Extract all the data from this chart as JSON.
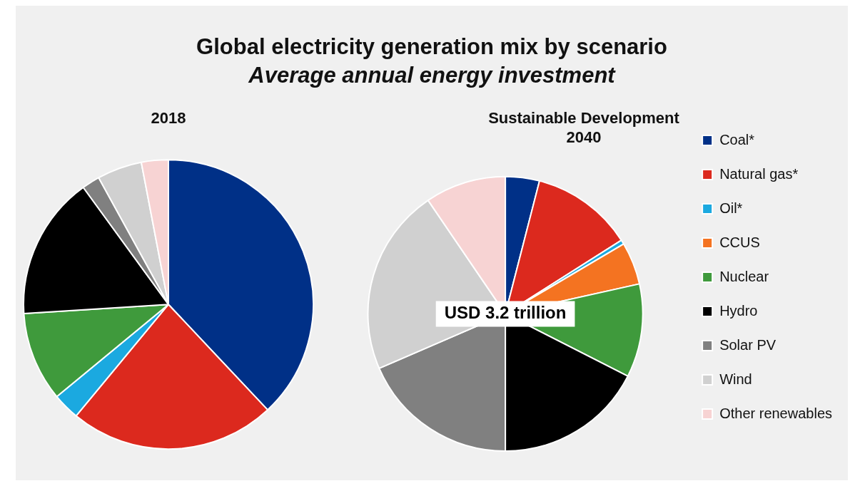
{
  "chart_data": [
    {
      "type": "other",
      "title": "Global electricity generation mix by scenario",
      "subtitle": "Average annual energy investment"
    },
    {
      "type": "pie",
      "title": "2018",
      "categories": [
        null,
        null,
        null,
        null,
        null,
        null,
        null,
        null,
        null
      ],
      "values": [
        38,
        23,
        3,
        0,
        10,
        16,
        2,
        5,
        3
      ],
      "colors": [
        "#003087",
        "#dc291e",
        "#1ba9e0",
        "#f47321",
        "#3f9a3c",
        "#000000",
        "#808080",
        "#d0d0d0",
        "#f7d3d3"
      ],
      "legend": false
    },
    {
      "type": "pie",
      "title": "Sustainable Development\n2040",
      "categories": [
        "Coal*",
        "Natural gas*",
        "Oil*",
        "CCUS",
        "Nuclear",
        "Hydro",
        "Solar PV",
        "Wind",
        "Other renewables"
      ],
      "values": [
        4,
        12,
        0.5,
        5,
        11,
        17.5,
        18.5,
        22,
        9.5
      ],
      "colors": [
        "#003087",
        "#dc291e",
        "#1ba9e0",
        "#f47321",
        "#3f9a3c",
        "#000000",
        "#808080",
        "#d0d0d0",
        "#f7d3d3"
      ],
      "legend": "right",
      "annotations": [
        "USD 3.2 trillion"
      ]
    }
  ]
}
